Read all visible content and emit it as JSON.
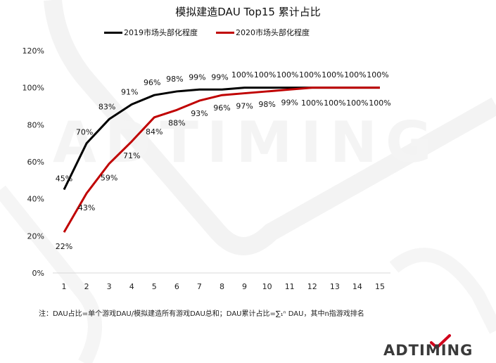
{
  "title": "模拟建造DAU Top15 累计占比",
  "legend": [
    {
      "label": "2019市场头部化程度",
      "color": "#000000"
    },
    {
      "label": "2020市场头部化程度",
      "color": "#c00000"
    }
  ],
  "note": "注：DAU占比=单个游戏DAU/模拟建造所有游戏DAU总和；DAU累计占比=∑₁ⁿ DAU，其中n指游戏排名",
  "logo": {
    "text": "ADTIMING",
    "accent": "#d0021b"
  },
  "chart_data": {
    "type": "line",
    "title": "模拟建造DAU Top15 累计占比",
    "xlabel": "",
    "ylabel": "",
    "x": [
      1,
      2,
      3,
      4,
      5,
      6,
      7,
      8,
      9,
      10,
      11,
      12,
      13,
      14,
      15
    ],
    "ylim": [
      0,
      120
    ],
    "yticks": [
      "0%",
      "20%",
      "40%",
      "60%",
      "80%",
      "100%",
      "120%"
    ],
    "grid": false,
    "legend_position": "top",
    "series": [
      {
        "name": "2019市场头部化程度",
        "color": "#000000",
        "values": [
          45,
          70,
          83,
          91,
          96,
          98,
          99,
          99,
          100,
          100,
          100,
          100,
          100,
          100,
          100
        ],
        "labels": [
          "45%",
          "70%",
          "83%",
          "91%",
          "96%",
          "98%",
          "99%",
          "99%",
          "100%",
          "100%",
          "100%",
          "100%",
          "100%",
          "100%",
          "100%"
        ]
      },
      {
        "name": "2020市场头部化程度",
        "color": "#c00000",
        "values": [
          22,
          43,
          59,
          71,
          84,
          88,
          93,
          96,
          97,
          98,
          99,
          100,
          100,
          100,
          100
        ],
        "labels": [
          "22%",
          "43%",
          "59%",
          "71%",
          "84%",
          "88%",
          "93%",
          "96%",
          "97%",
          "98%",
          "99%",
          "100%",
          "100%",
          "100%",
          "100%"
        ]
      }
    ]
  }
}
